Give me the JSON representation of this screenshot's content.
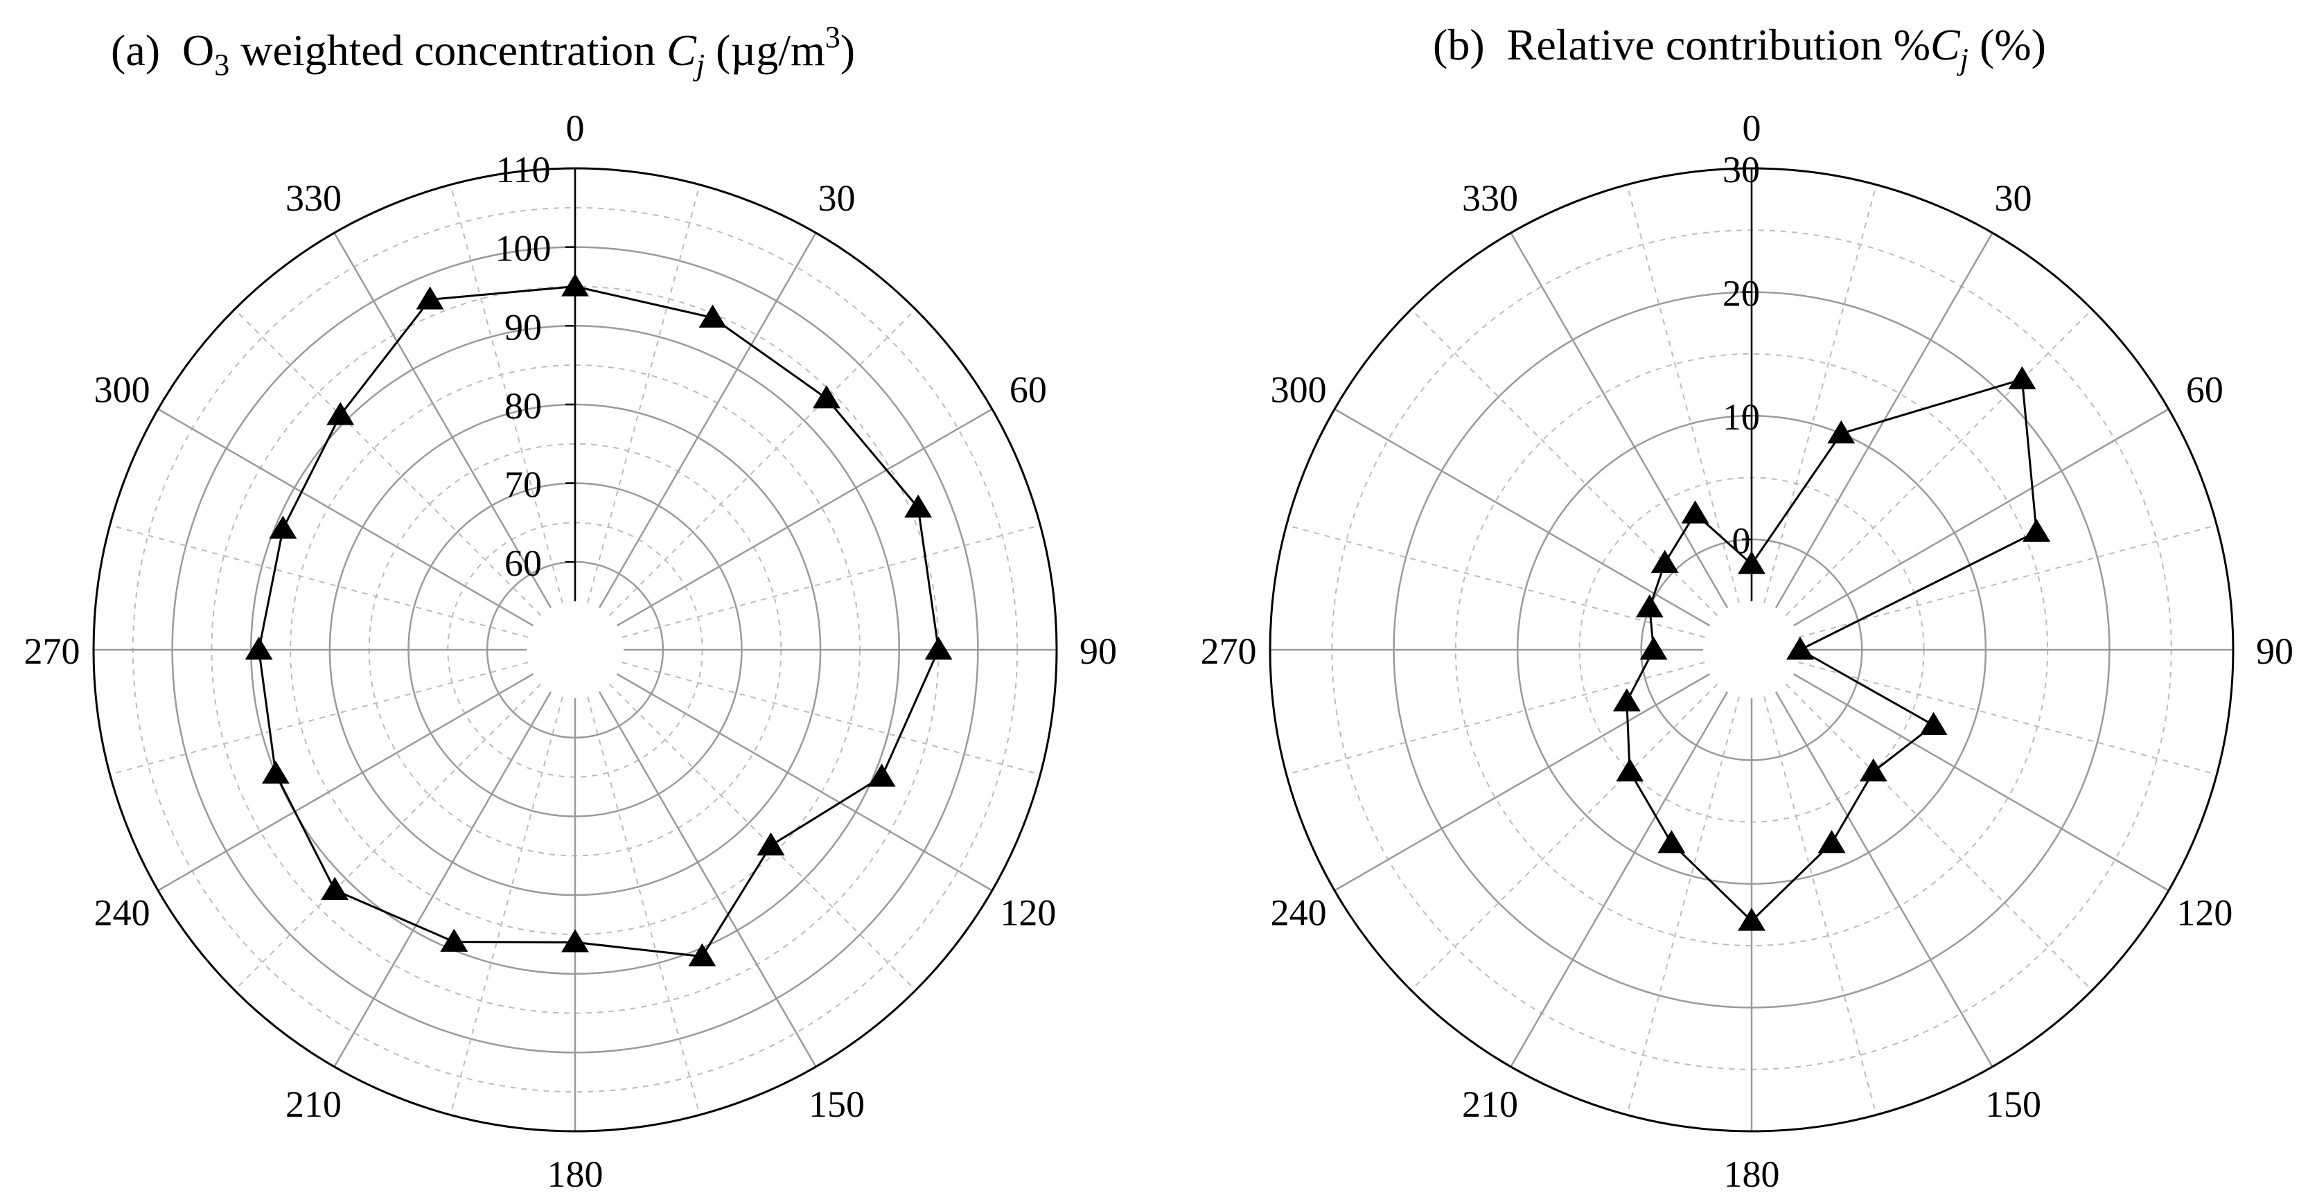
{
  "chart_data": [
    {
      "type": "polar-line",
      "panel": "(a)",
      "title": {
        "panel": "(a)",
        "t1": "O",
        "sub": "3",
        "t2": " weighted concentration ",
        "var": "C",
        "var_sub": "j",
        "t3": " (µg/m",
        "sup": "3",
        "t4": ")"
      },
      "angle_labels": [
        "0",
        "30",
        "60",
        "90",
        "120",
        "150",
        "180",
        "210",
        "240",
        "270",
        "300",
        "330"
      ],
      "r_ticks": [
        "60",
        "70",
        "80",
        "90",
        "100",
        "110"
      ],
      "rlim": [
        55,
        110
      ],
      "directions": [
        0,
        22.5,
        45,
        67.5,
        90,
        112.5,
        135,
        157.5,
        180,
        202.5,
        225,
        247.5,
        270,
        292.5,
        315,
        337.5
      ],
      "values": [
        95,
        94.5,
        94,
        96,
        95,
        91,
        84,
        91,
        86,
        89,
        92,
        90,
        89,
        89,
        91,
        97
      ],
      "marker": "triangle"
    },
    {
      "type": "polar-line",
      "panel": "(b)",
      "title": {
        "panel": "(b)",
        "t1": "Relative contribution %",
        "var": "C",
        "var_sub": "j",
        "t2": " (%)"
      },
      "angle_labels": [
        "0",
        "30",
        "60",
        "90",
        "120",
        "150",
        "180",
        "210",
        "240",
        "270",
        "300",
        "330"
      ],
      "r_ticks": [
        "0",
        "10",
        "20",
        "30"
      ],
      "rlim": [
        -5,
        30
      ],
      "directions": [
        0,
        22.5,
        45,
        67.5,
        90,
        112.5,
        135,
        157.5,
        180,
        202.5,
        225,
        247.5,
        270,
        292.5,
        315,
        337.5
      ],
      "values": [
        -2,
        10,
        22,
        16,
        -5,
        7,
        5,
        8,
        13,
        8,
        5,
        2,
        -1,
        0,
        1,
        3
      ],
      "marker": "triangle"
    }
  ]
}
